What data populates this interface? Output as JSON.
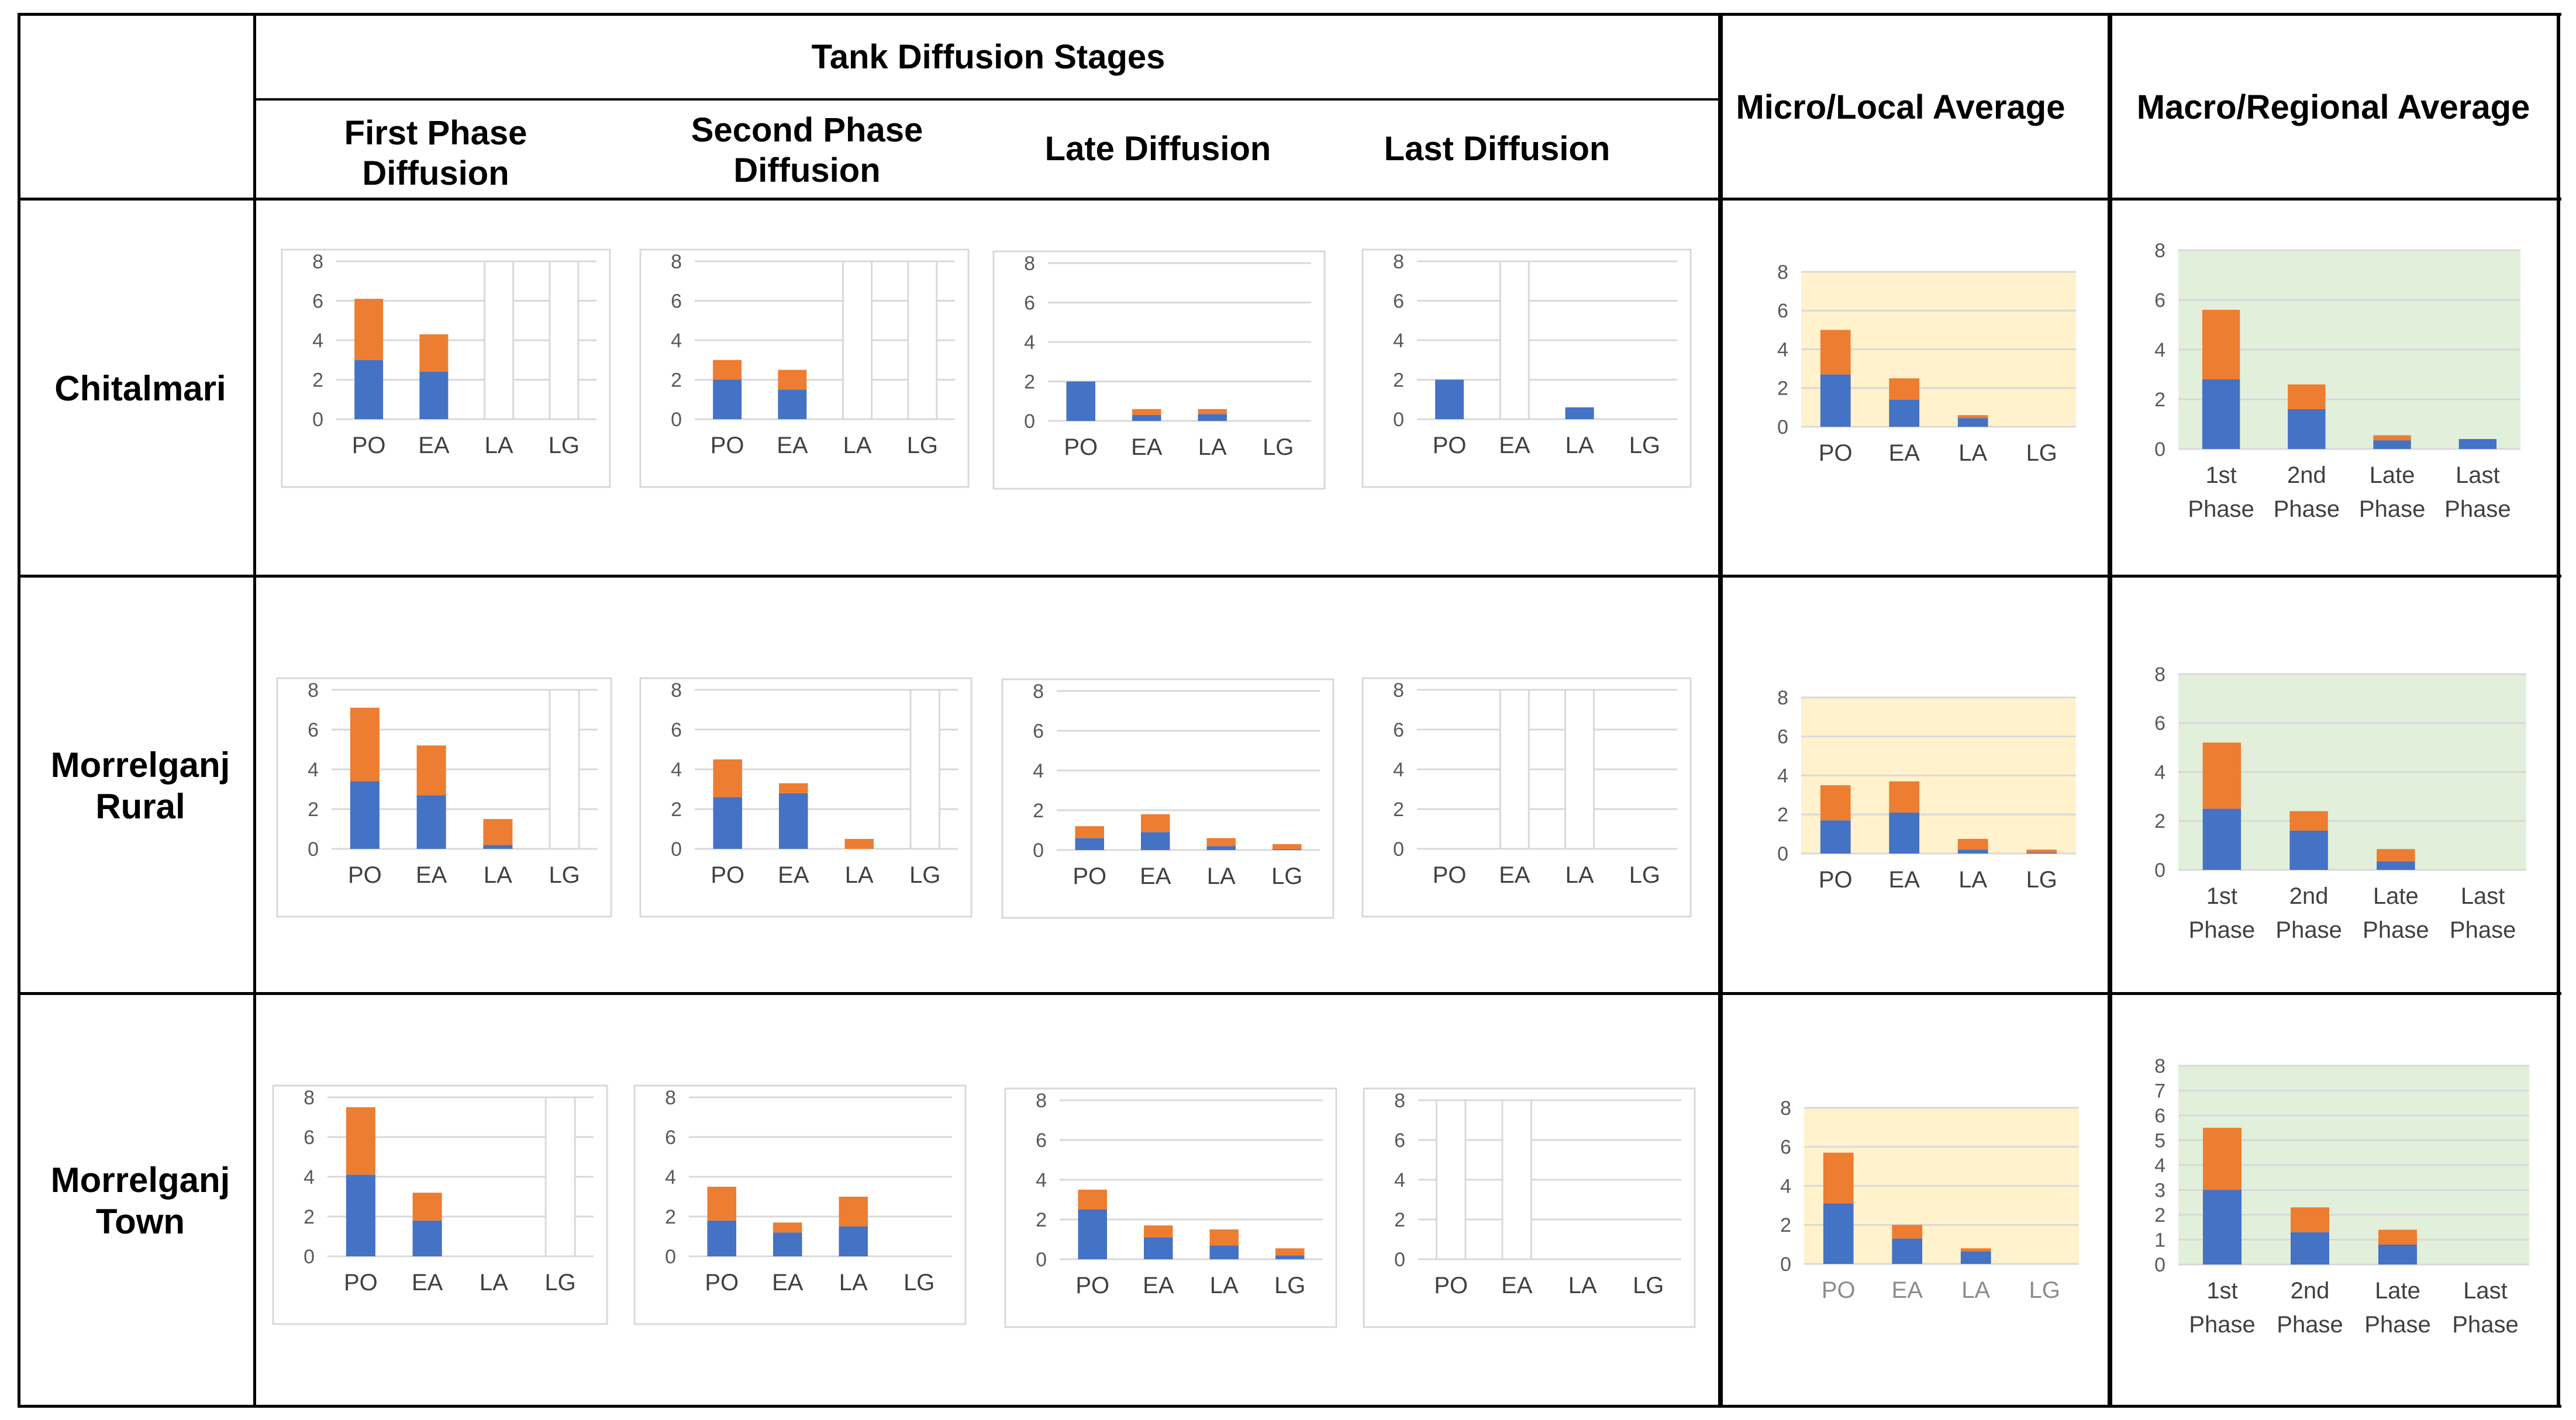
{
  "table": {
    "header_group": "Tank Diffusion Stages",
    "stage_headers": [
      "First Phase Diffusion",
      "Second Phase Diffusion",
      "Late Diffusion",
      "Last Diffusion"
    ],
    "micro_header": "Micro/Local Average",
    "macro_header": "Macro/Regional Average",
    "row_labels": [
      "Chitalmari",
      "Morrelganj Rural",
      "Morrelganj Town"
    ]
  },
  "colors": {
    "blue": "#4472C4",
    "orange": "#ED7D31",
    "micro_bg": "#FFF2CC",
    "macro_bg": "#E2EFDA",
    "grid": "#D9D9D9",
    "axis_text": "#595959"
  },
  "chart_data": [
    {
      "id": "chitalmari-first",
      "type": "bar",
      "stacked": true,
      "categories": [
        "PO",
        "EA",
        "LA",
        "LG"
      ],
      "series": [
        {
          "name": "blue",
          "values": [
            3.0,
            2.4,
            0,
            0
          ]
        },
        {
          "name": "orange",
          "values": [
            3.1,
            1.9,
            0,
            0
          ]
        }
      ],
      "ylim": [
        0,
        8
      ],
      "yticks": [
        0,
        2,
        4,
        6,
        8
      ],
      "empty_columns": [
        "LA",
        "LG"
      ]
    },
    {
      "id": "chitalmari-second",
      "type": "bar",
      "stacked": true,
      "categories": [
        "PO",
        "EA",
        "LA",
        "LG"
      ],
      "series": [
        {
          "name": "blue",
          "values": [
            2.0,
            1.5,
            0,
            0
          ]
        },
        {
          "name": "orange",
          "values": [
            1.0,
            1.0,
            0,
            0
          ]
        }
      ],
      "ylim": [
        0,
        8
      ],
      "yticks": [
        0,
        2,
        4,
        6,
        8
      ],
      "empty_columns": [
        "LA",
        "LG"
      ]
    },
    {
      "id": "chitalmari-late",
      "type": "bar",
      "stacked": true,
      "categories": [
        "PO",
        "EA",
        "LA",
        "LG"
      ],
      "series": [
        {
          "name": "blue",
          "values": [
            2.0,
            0.3,
            0.35,
            0
          ]
        },
        {
          "name": "orange",
          "values": [
            0,
            0.3,
            0.25,
            0
          ]
        }
      ],
      "ylim": [
        0,
        8
      ],
      "yticks": [
        0,
        2,
        4,
        6,
        8
      ],
      "empty_columns": []
    },
    {
      "id": "chitalmari-last",
      "type": "bar",
      "stacked": true,
      "categories": [
        "PO",
        "EA",
        "LA",
        "LG"
      ],
      "series": [
        {
          "name": "blue",
          "values": [
            2.0,
            0,
            0.6,
            0
          ]
        },
        {
          "name": "orange",
          "values": [
            0,
            0,
            0,
            0
          ]
        }
      ],
      "ylim": [
        0,
        8
      ],
      "yticks": [
        0,
        2,
        4,
        6,
        8
      ],
      "empty_columns": [
        "EA"
      ]
    },
    {
      "id": "chitalmari-micro",
      "type": "bar",
      "stacked": true,
      "categories": [
        "PO",
        "EA",
        "LA",
        "LG"
      ],
      "series": [
        {
          "name": "blue",
          "values": [
            2.7,
            1.4,
            0.45,
            0
          ]
        },
        {
          "name": "orange",
          "values": [
            2.3,
            1.1,
            0.15,
            0
          ]
        }
      ],
      "ylim": [
        0,
        8
      ],
      "yticks": [
        0,
        2,
        4,
        6,
        8
      ],
      "background": "micro"
    },
    {
      "id": "chitalmari-macro",
      "type": "bar",
      "stacked": true,
      "categories": [
        "1st Phase",
        "2nd Phase",
        "Late Phase",
        "Last Phase"
      ],
      "series": [
        {
          "name": "blue",
          "values": [
            2.8,
            1.6,
            0.35,
            0.4
          ]
        },
        {
          "name": "orange",
          "values": [
            2.8,
            1.0,
            0.2,
            0
          ]
        }
      ],
      "ylim": [
        0,
        8
      ],
      "yticks": [
        0,
        2,
        4,
        6,
        8
      ],
      "background": "macro"
    },
    {
      "id": "rural-first",
      "type": "bar",
      "stacked": true,
      "categories": [
        "PO",
        "EA",
        "LA",
        "LG"
      ],
      "series": [
        {
          "name": "blue",
          "values": [
            3.4,
            2.7,
            0.2,
            0
          ]
        },
        {
          "name": "orange",
          "values": [
            3.7,
            2.5,
            1.3,
            0
          ]
        }
      ],
      "ylim": [
        0,
        8
      ],
      "yticks": [
        0,
        2,
        4,
        6,
        8
      ],
      "empty_columns": [
        "LG"
      ]
    },
    {
      "id": "rural-second",
      "type": "bar",
      "stacked": true,
      "categories": [
        "PO",
        "EA",
        "LA",
        "LG"
      ],
      "series": [
        {
          "name": "blue",
          "values": [
            2.6,
            2.8,
            0,
            0
          ]
        },
        {
          "name": "orange",
          "values": [
            1.9,
            0.5,
            0.5,
            0
          ]
        }
      ],
      "ylim": [
        0,
        8
      ],
      "yticks": [
        0,
        2,
        4,
        6,
        8
      ],
      "empty_columns": [
        "LG"
      ]
    },
    {
      "id": "rural-late",
      "type": "bar",
      "stacked": true,
      "categories": [
        "PO",
        "EA",
        "LA",
        "LG"
      ],
      "series": [
        {
          "name": "blue",
          "values": [
            0.6,
            0.9,
            0.2,
            0.05
          ]
        },
        {
          "name": "orange",
          "values": [
            0.6,
            0.9,
            0.4,
            0.25
          ]
        }
      ],
      "ylim": [
        0,
        8
      ],
      "yticks": [
        0,
        2,
        4,
        6,
        8
      ],
      "empty_columns": []
    },
    {
      "id": "rural-last",
      "type": "bar",
      "stacked": true,
      "categories": [
        "PO",
        "EA",
        "LA",
        "LG"
      ],
      "series": [
        {
          "name": "blue",
          "values": [
            0,
            0,
            0,
            0
          ]
        },
        {
          "name": "orange",
          "values": [
            0,
            0,
            0,
            0
          ]
        }
      ],
      "ylim": [
        0,
        8
      ],
      "yticks": [
        0,
        2,
        4,
        6,
        8
      ],
      "empty_columns": [
        "EA",
        "LA"
      ]
    },
    {
      "id": "rural-micro",
      "type": "bar",
      "stacked": true,
      "categories": [
        "PO",
        "EA",
        "LA",
        "LG"
      ],
      "series": [
        {
          "name": "blue",
          "values": [
            1.7,
            2.1,
            0.2,
            0.05
          ]
        },
        {
          "name": "orange",
          "values": [
            1.8,
            1.6,
            0.55,
            0.15
          ]
        }
      ],
      "ylim": [
        0,
        8
      ],
      "yticks": [
        0,
        2,
        4,
        6,
        8
      ],
      "background": "micro"
    },
    {
      "id": "rural-macro",
      "type": "bar",
      "stacked": true,
      "categories": [
        "1st Phase",
        "2nd Phase",
        "Late Phase",
        "Last Phase"
      ],
      "series": [
        {
          "name": "blue",
          "values": [
            2.5,
            1.6,
            0.35,
            0
          ]
        },
        {
          "name": "orange",
          "values": [
            2.7,
            0.8,
            0.5,
            0
          ]
        }
      ],
      "ylim": [
        0,
        8
      ],
      "yticks": [
        0,
        2,
        4,
        6,
        8
      ],
      "background": "macro"
    },
    {
      "id": "town-first",
      "type": "bar",
      "stacked": true,
      "categories": [
        "PO",
        "EA",
        "LA",
        "LG"
      ],
      "series": [
        {
          "name": "blue",
          "values": [
            4.1,
            1.8,
            0,
            0
          ]
        },
        {
          "name": "orange",
          "values": [
            3.4,
            1.4,
            0,
            0
          ]
        }
      ],
      "ylim": [
        0,
        8
      ],
      "yticks": [
        0,
        2,
        4,
        6,
        8
      ],
      "empty_columns": [
        "LG"
      ]
    },
    {
      "id": "town-second",
      "type": "bar",
      "stacked": true,
      "categories": [
        "PO",
        "EA",
        "LA",
        "LG"
      ],
      "series": [
        {
          "name": "blue",
          "values": [
            1.8,
            1.2,
            1.5,
            0
          ]
        },
        {
          "name": "orange",
          "values": [
            1.7,
            0.5,
            1.5,
            0
          ]
        }
      ],
      "ylim": [
        0,
        8
      ],
      "yticks": [
        0,
        2,
        4,
        6,
        8
      ],
      "empty_columns": []
    },
    {
      "id": "town-late",
      "type": "bar",
      "stacked": true,
      "categories": [
        "PO",
        "EA",
        "LA",
        "LG"
      ],
      "series": [
        {
          "name": "blue",
          "values": [
            2.5,
            1.1,
            0.7,
            0.2
          ]
        },
        {
          "name": "orange",
          "values": [
            1.0,
            0.6,
            0.8,
            0.35
          ]
        }
      ],
      "ylim": [
        0,
        8
      ],
      "yticks": [
        0,
        2,
        4,
        6,
        8
      ],
      "empty_columns": []
    },
    {
      "id": "town-last",
      "type": "bar",
      "stacked": true,
      "categories": [
        "PO",
        "EA",
        "LA",
        "LG"
      ],
      "series": [
        {
          "name": "blue",
          "values": [
            0,
            0,
            0,
            0
          ]
        },
        {
          "name": "orange",
          "values": [
            0,
            0,
            0,
            0
          ]
        }
      ],
      "ylim": [
        0,
        8
      ],
      "yticks": [
        0,
        2,
        4,
        6,
        8
      ],
      "empty_columns": [
        "PO",
        "EA"
      ]
    },
    {
      "id": "town-micro",
      "type": "bar",
      "stacked": true,
      "categories": [
        "PO",
        "EA",
        "LA",
        "LG"
      ],
      "series": [
        {
          "name": "blue",
          "values": [
            3.1,
            1.3,
            0.65,
            0
          ]
        },
        {
          "name": "orange",
          "values": [
            2.6,
            0.7,
            0.15,
            0
          ]
        }
      ],
      "ylim": [
        0,
        8
      ],
      "yticks": [
        0,
        2,
        4,
        6,
        8
      ],
      "background": "micro"
    },
    {
      "id": "town-macro",
      "type": "bar",
      "stacked": true,
      "categories": [
        "1st Phase",
        "2nd Phase",
        "Late Phase",
        "Last Phase"
      ],
      "series": [
        {
          "name": "blue",
          "values": [
            3.0,
            1.3,
            0.8,
            0
          ]
        },
        {
          "name": "orange",
          "values": [
            2.5,
            1.0,
            0.6,
            0
          ]
        }
      ],
      "ylim": [
        0,
        8
      ],
      "yticks": [
        0,
        1,
        2,
        3,
        4,
        5,
        6,
        7,
        8
      ],
      "background": "macro"
    }
  ]
}
